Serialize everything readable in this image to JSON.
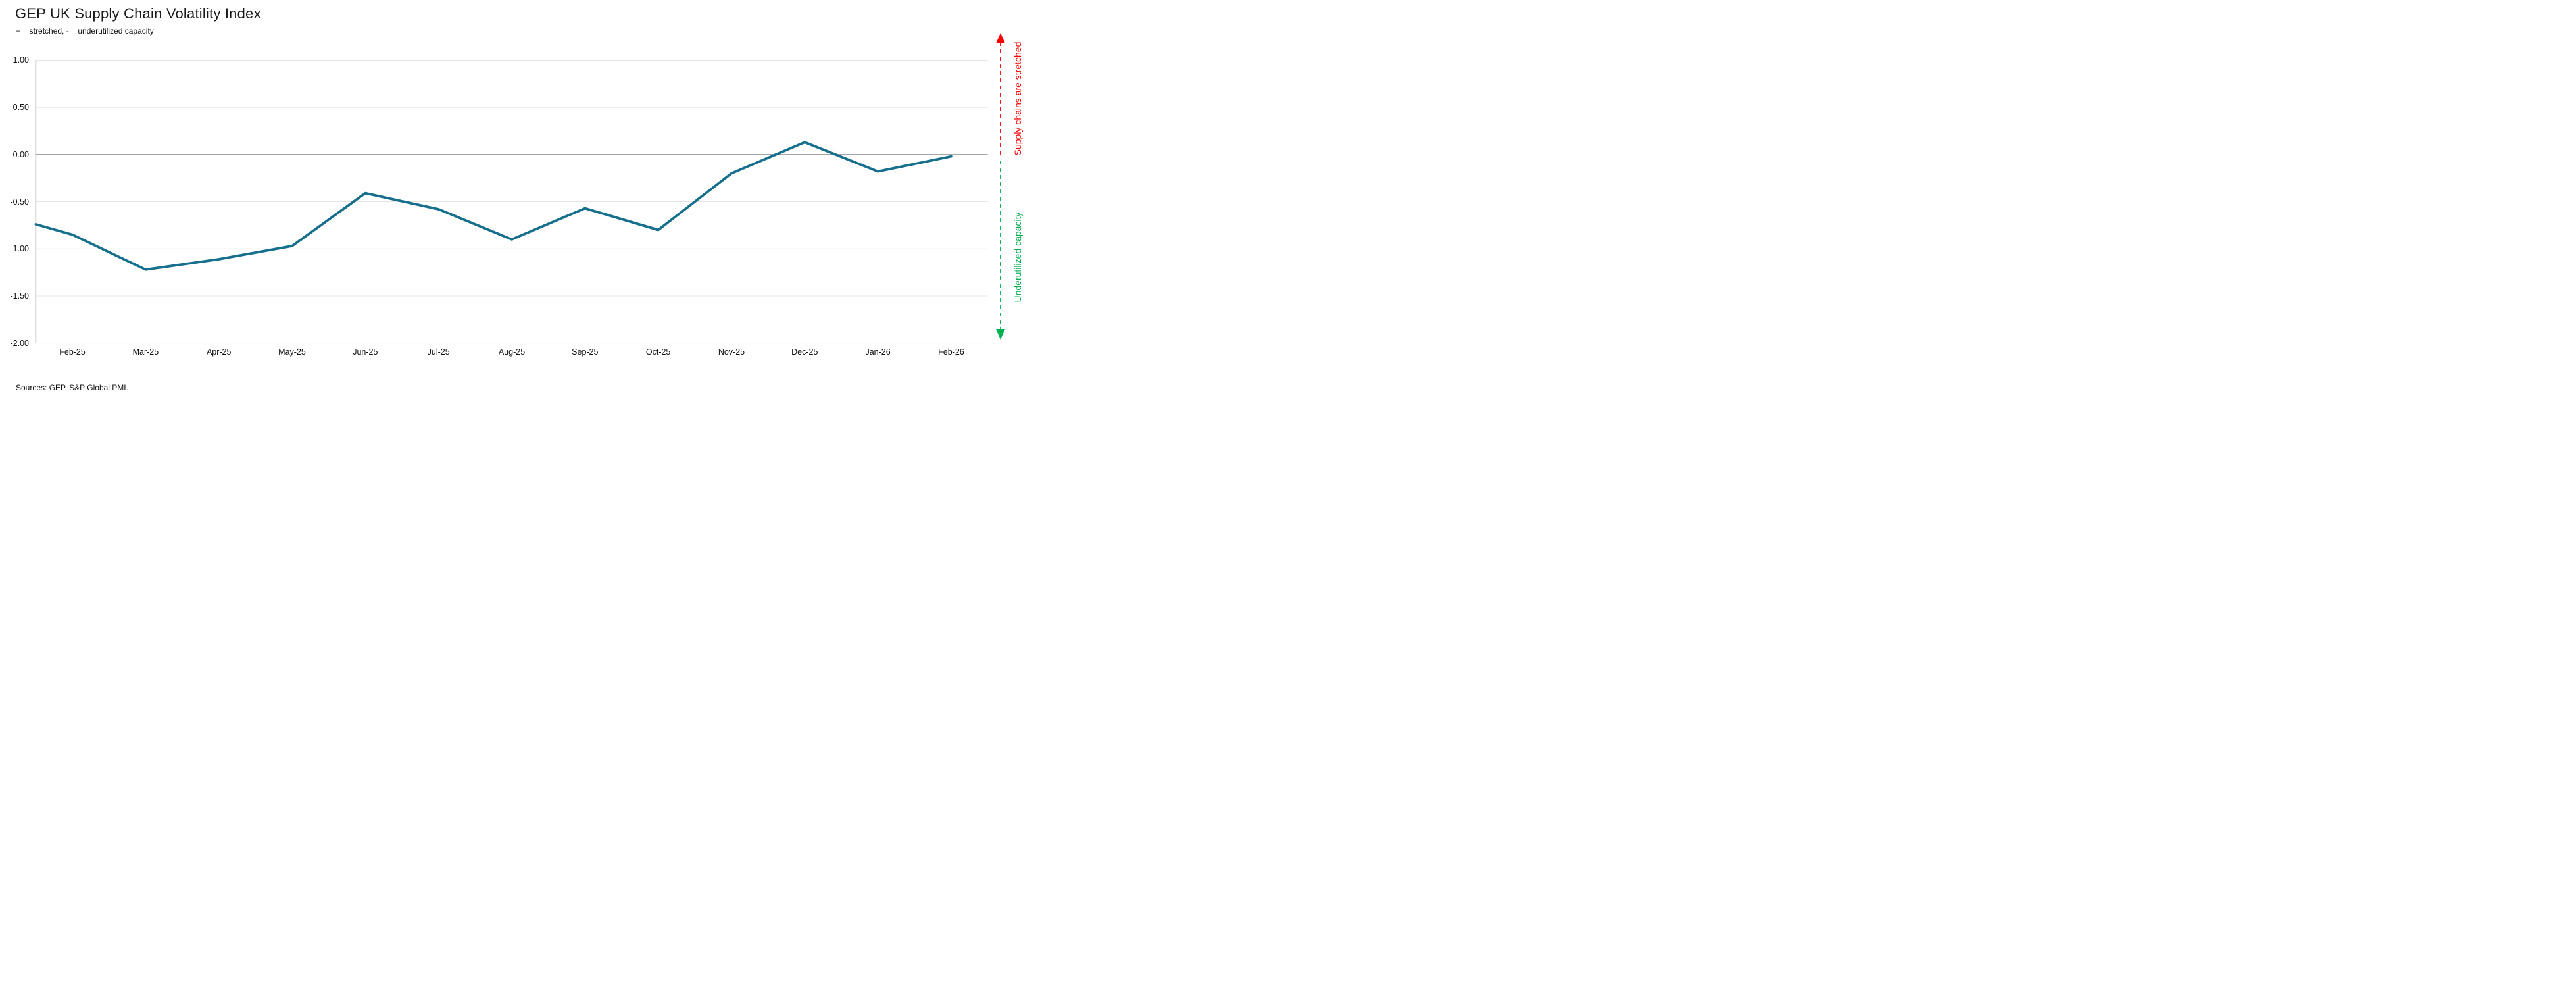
{
  "chart_data": {
    "type": "line",
    "title": "GEP UK Supply Chain Volatility Index",
    "subtitle": "+ = stretched, - = underutilized capacity",
    "series": [
      {
        "name": "GEP UK Supply Chain Volatility Index",
        "points": [
          {
            "label": "",
            "value": -0.74
          },
          {
            "label": "Feb-25",
            "value": -0.85
          },
          {
            "label": "Mar-25",
            "value": -1.22
          },
          {
            "label": "Apr-25",
            "value": -1.11
          },
          {
            "label": "May-25",
            "value": -0.97
          },
          {
            "label": "Jun-25",
            "value": -0.41
          },
          {
            "label": "Jul-25",
            "value": -0.58
          },
          {
            "label": "Aug-25",
            "value": -0.9
          },
          {
            "label": "Sep-25",
            "value": -0.57
          },
          {
            "label": "Oct-25",
            "value": -0.8
          },
          {
            "label": "Nov-25",
            "value": -0.2
          },
          {
            "label": "Dec-25",
            "value": 0.13
          },
          {
            "label": "Jan-26",
            "value": -0.18
          },
          {
            "label": "Feb-26",
            "value": -0.02
          }
        ]
      }
    ],
    "ylim": [
      -2.0,
      1.0
    ],
    "y_tick_step": 0.5,
    "y_tick_labels": [
      "1.00",
      "0.50",
      "0.00",
      "-0.50",
      "-1.00",
      "-1.50",
      "-2.00"
    ],
    "grid": "horizontal",
    "legend": "none",
    "line_color": "#166F8C",
    "gridline_color": "#E4E4E4",
    "axis_color": "#A6A6A6",
    "zero_line_color": "#A6A6A6"
  },
  "annotations": {
    "stretched": {
      "text": "Supply chains are stretched",
      "color": "#FF0000",
      "direction": "up"
    },
    "underutilized": {
      "text": "Underutilized capacity",
      "color": "#00B050",
      "direction": "down"
    }
  },
  "source_note": "Sources: GEP, S&P Global PMI."
}
